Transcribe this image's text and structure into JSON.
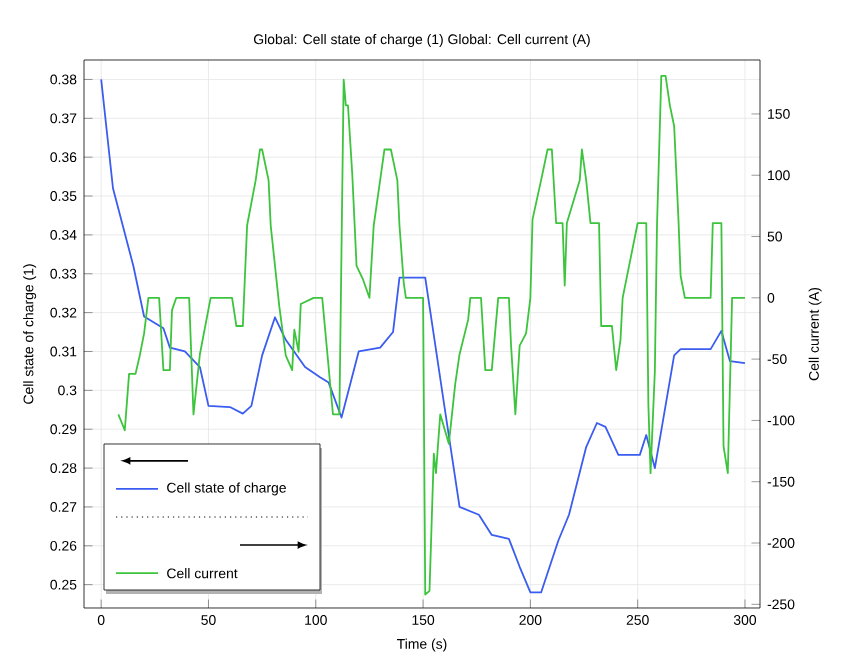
{
  "chart_data": {
    "type": "line",
    "title": "Global: Cell state of charge (1)  Global: Cell current (A)",
    "xlabel": "Time (s)",
    "ylabel": "Cell state of charge (1)",
    "y2label": "Cell current (A)",
    "xlim": [
      -8,
      307
    ],
    "xticks": [
      0,
      50,
      100,
      150,
      200,
      250,
      300
    ],
    "ylim": [
      0.244,
      0.385
    ],
    "yticks": [
      0.25,
      0.26,
      0.27,
      0.28,
      0.29,
      0.3,
      0.31,
      0.32,
      0.33,
      0.34,
      0.35,
      0.36,
      0.37,
      0.38
    ],
    "y2lim": [
      -253,
      194
    ],
    "y2ticks": [
      -250,
      -200,
      -150,
      -100,
      -50,
      0,
      50,
      100,
      150
    ],
    "grid": true,
    "legend": "bottom left",
    "line_style": "solid",
    "marker": "none",
    "series": [
      {
        "name": "Cell state of charge",
        "color": "#3a5cf0",
        "x": [
          0,
          5.5,
          15,
          20,
          29,
          32,
          39,
          46,
          50,
          60,
          66,
          70,
          75,
          81,
          86,
          95,
          102,
          106,
          112,
          120,
          130,
          136,
          139,
          151,
          160,
          167,
          176,
          182,
          190,
          195,
          200,
          205,
          213,
          218,
          226,
          231,
          235,
          241,
          251,
          254,
          258,
          267,
          270,
          284,
          289,
          293,
          300
        ],
        "values": [
          0.38,
          0.352,
          0.332,
          0.319,
          0.316,
          0.311,
          0.31,
          0.306,
          0.296,
          0.2957,
          0.294,
          0.296,
          0.309,
          0.3188,
          0.313,
          0.306,
          0.3034,
          0.302,
          0.293,
          0.31,
          0.311,
          0.315,
          0.329,
          0.329,
          0.2957,
          0.27,
          0.268,
          0.2628,
          0.2618,
          0.2546,
          0.248,
          0.248,
          0.2613,
          0.268,
          0.2854,
          0.2916,
          0.2906,
          0.2834,
          0.2834,
          0.2885,
          0.28,
          0.309,
          0.3106,
          0.3106,
          0.3153,
          0.3075,
          0.307
        ]
      },
      {
        "name": "Cell current",
        "color": "#3cc43c",
        "axis": "y2",
        "x": [
          8,
          11,
          13,
          16,
          18,
          20,
          22,
          27,
          29,
          32,
          33,
          35,
          41,
          43,
          46,
          51,
          61,
          63,
          66,
          68,
          72,
          74,
          75,
          78,
          79,
          83,
          86,
          89,
          90,
          92,
          93,
          99,
          103,
          108,
          111,
          113,
          114,
          115,
          117,
          119,
          122,
          125,
          127,
          130,
          132,
          135,
          138,
          139,
          141,
          142,
          150,
          151,
          153,
          155,
          156,
          158,
          162,
          165,
          167,
          171,
          172,
          177,
          179,
          182,
          185,
          190,
          191,
          193,
          195,
          198,
          200,
          201,
          205,
          208,
          210,
          212,
          215,
          216,
          217,
          223,
          224,
          226,
          228,
          232,
          233,
          238,
          240,
          242,
          243,
          250,
          254,
          255,
          256,
          258,
          259,
          261,
          263,
          265,
          267,
          269,
          270,
          272,
          284,
          285,
          289,
          290,
          292,
          294,
          300
        ],
        "values": [
          -95,
          -108,
          -62,
          -62,
          -47,
          -29,
          0,
          0,
          -59,
          -59,
          -10,
          0,
          0,
          -95,
          -46,
          0,
          0,
          -23,
          -23,
          59,
          96,
          121,
          121,
          96,
          59,
          -7,
          -47,
          -59,
          -26,
          -44,
          -5,
          0,
          0,
          -95,
          -95,
          178,
          157,
          157,
          101,
          26,
          15,
          0,
          59,
          96,
          121,
          121,
          96,
          59,
          12,
          0,
          0,
          -242,
          -239,
          -127,
          -143,
          -95,
          -119,
          -70,
          -46,
          -18,
          0,
          0,
          -59,
          -59,
          0,
          0,
          -39,
          -95,
          -39,
          -29,
          0,
          64,
          96,
          121,
          121,
          61,
          61,
          10,
          61,
          96,
          121,
          96,
          61,
          61,
          -23,
          -23,
          -59,
          -34,
          0,
          61,
          61,
          -88,
          -143,
          -60,
          59,
          181,
          181,
          157,
          140,
          64,
          18,
          0,
          0,
          61,
          61,
          -121,
          -143,
          0,
          0
        ]
      }
    ]
  }
}
